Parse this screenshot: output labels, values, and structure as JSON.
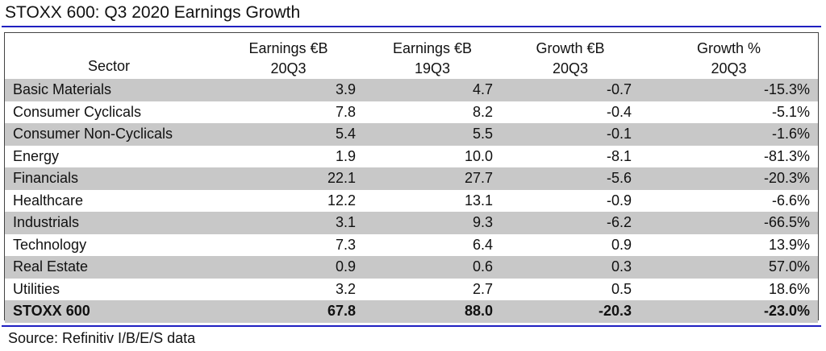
{
  "title": "STOXX 600: Q3 2020 Earnings Growth",
  "source": "Source: Refinitiv I/B/E/S data",
  "chart_data": {
    "type": "table",
    "title": "STOXX 600: Q3 2020 Earnings Growth",
    "columns": [
      {
        "line1": "",
        "line2": "Sector"
      },
      {
        "line1": "Earnings €B",
        "line2": "20Q3"
      },
      {
        "line1": "Earnings €B",
        "line2": "19Q3"
      },
      {
        "line1": "Growth €B",
        "line2": "20Q3"
      },
      {
        "line1": "Growth %",
        "line2": "20Q3"
      }
    ],
    "rows": [
      {
        "sector": "Basic Materials",
        "values": [
          "3.9",
          "4.7",
          "-0.7",
          "-15.3%"
        ]
      },
      {
        "sector": "Consumer Cyclicals",
        "values": [
          "7.8",
          "8.2",
          "-0.4",
          "-5.1%"
        ]
      },
      {
        "sector": "Consumer Non-Cyclicals",
        "values": [
          "5.4",
          "5.5",
          "-0.1",
          "-1.6%"
        ]
      },
      {
        "sector": "Energy",
        "values": [
          "1.9",
          "10.0",
          "-8.1",
          "-81.3%"
        ]
      },
      {
        "sector": "Financials",
        "values": [
          "22.1",
          "27.7",
          "-5.6",
          "-20.3%"
        ]
      },
      {
        "sector": "Healthcare",
        "values": [
          "12.2",
          "13.1",
          "-0.9",
          "-6.6%"
        ]
      },
      {
        "sector": "Industrials",
        "values": [
          "3.1",
          "9.3",
          "-6.2",
          "-66.5%"
        ]
      },
      {
        "sector": "Technology",
        "values": [
          "7.3",
          "6.4",
          "0.9",
          "13.9%"
        ]
      },
      {
        "sector": "Real Estate",
        "values": [
          "0.9",
          "0.6",
          "0.3",
          "57.0%"
        ]
      },
      {
        "sector": "Utilities",
        "values": [
          "3.2",
          "2.7",
          "0.5",
          "18.6%"
        ]
      }
    ],
    "total": {
      "sector": "STOXX 600",
      "values": [
        "67.8",
        "88.0",
        "-20.3",
        "-23.0%"
      ]
    }
  },
  "colors": {
    "rule": "#1f1fc0",
    "shade": "#c8c8c8"
  }
}
